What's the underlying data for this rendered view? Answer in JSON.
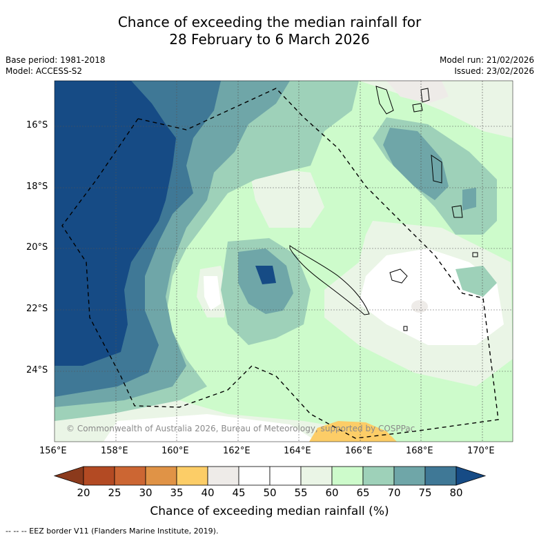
{
  "title": {
    "line1": "Chance of exceeding the median rainfall for",
    "line2": "28 February to 6 March 2026"
  },
  "meta": {
    "base_period": "Base period: 1981-2018",
    "model": "Model: ACCESS-S2",
    "model_run": "Model run: 21/02/2026",
    "issued": "Issued: 23/02/2026"
  },
  "axes": {
    "lat_labels": [
      "16°S",
      "18°S",
      "20°S",
      "22°S",
      "24°S"
    ],
    "lon_labels": [
      "156°E",
      "158°E",
      "160°E",
      "162°E",
      "164°E",
      "166°E",
      "168°E",
      "170°E"
    ]
  },
  "copyright": "© Commonwealth of Australia 2026, Bureau of Meteorology, supported by COSPPac",
  "colorbar": {
    "ticks": [
      "20",
      "25",
      "30",
      "35",
      "40",
      "45",
      "50",
      "55",
      "60",
      "65",
      "70",
      "75",
      "80"
    ],
    "colors": [
      "#8b3a1c",
      "#b34a23",
      "#cc6633",
      "#e09346",
      "#fccd67",
      "#eeebe8",
      "#ffffff",
      "#ffffff",
      "#eaf5e6",
      "#cdfbcb",
      "#9ed1b9",
      "#6fa6a8",
      "#3f7896",
      "#164b85"
    ],
    "label": "Chance of exceeding median rainfall (%)"
  },
  "footer": "--  --  -- EEZ border V11 (Flanders Marine Institute, 2019)."
}
